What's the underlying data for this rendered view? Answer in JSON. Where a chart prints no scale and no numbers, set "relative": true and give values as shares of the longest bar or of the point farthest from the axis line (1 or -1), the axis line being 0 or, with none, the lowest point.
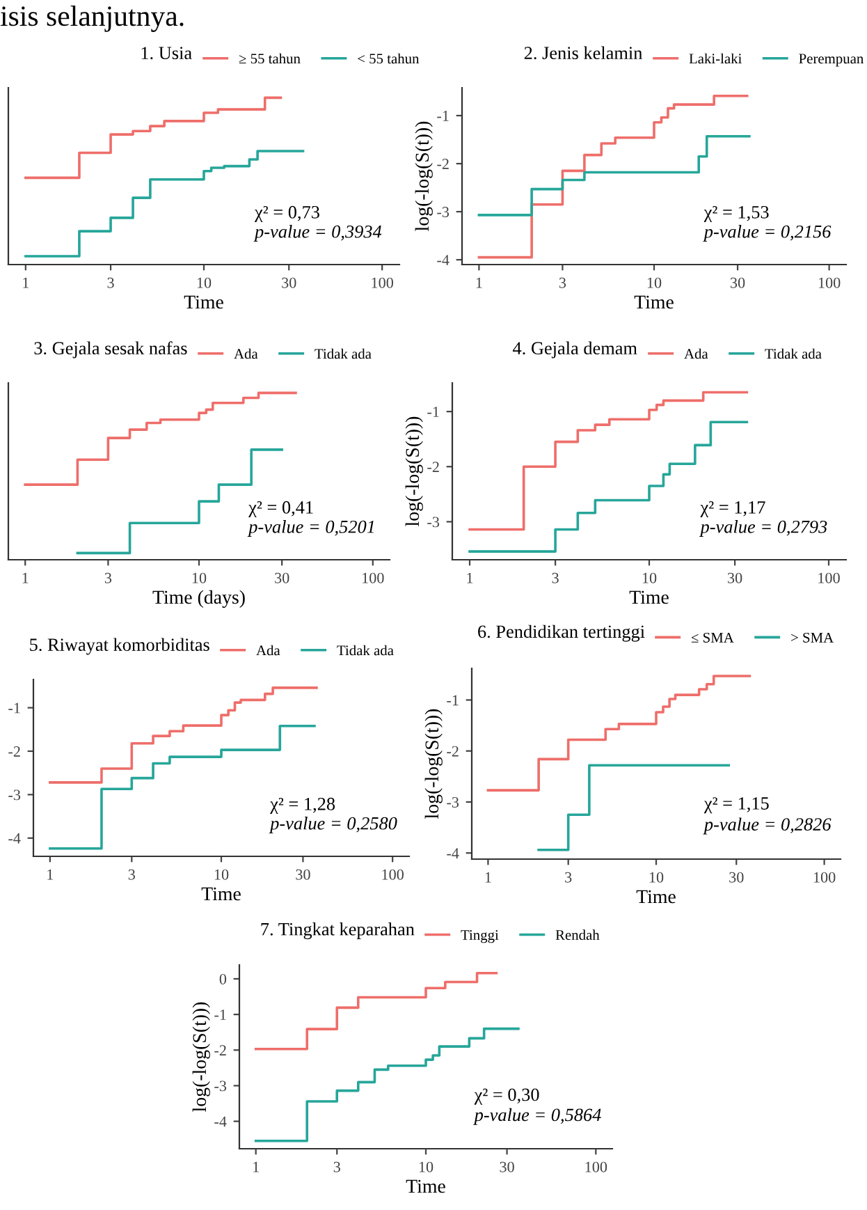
{
  "chart_data": [
    {
      "type": "step",
      "legend_title": "1. Usia",
      "legend": "top",
      "xlabel": "Time",
      "relative": true,
      "tick_labels": "x",
      "log": "x",
      "xlim": [
        0.8,
        125
      ],
      "xticks": [
        1,
        3,
        10,
        30,
        100
      ],
      "annotations": [
        "isis selanjutnya.",
        "χ² = 0,73",
        "p-value = 0,3934"
      ],
      "series": [
        {
          "name": "≥ 55 tahun",
          "color": "#ee6e6a",
          "x": [
            1,
            2,
            3,
            4,
            5,
            6,
            10,
            12,
            22,
            27
          ],
          "values": [
            0.52,
            0.67,
            0.78,
            0.8,
            0.83,
            0.86,
            0.91,
            0.93,
            1,
            1
          ]
        },
        {
          "name": "< 55 tahun",
          "color": "#26a69a",
          "x": [
            1,
            2,
            3,
            4,
            5,
            10,
            11,
            13,
            18,
            20,
            36
          ],
          "values": [
            0.05,
            0.2,
            0.28,
            0.4,
            0.51,
            0.56,
            0.58,
            0.59,
            0.63,
            0.68,
            0.68
          ]
        }
      ]
    },
    {
      "type": "step",
      "legend_title": "2. Jenis kelamin",
      "legend": "top",
      "xlabel": "Time",
      "ylabel": "log(-log(S(t)))",
      "log": "x",
      "xlim": [
        0.8,
        125
      ],
      "xticks": [
        1,
        3,
        10,
        30,
        100
      ],
      "ylim": [
        -4.1,
        -0.42
      ],
      "yticks": [
        -4,
        -3,
        -2,
        -1
      ],
      "annotations": [
        "χ² = 1,53",
        "p-value = 0,2156"
      ],
      "series": [
        {
          "name": "Laki-laki",
          "color": "#ee6e6a",
          "x": [
            1,
            2,
            3,
            4,
            5,
            6,
            10,
            11,
            12,
            13,
            22,
            34
          ],
          "values": [
            -3.95,
            -2.85,
            -2.15,
            -1.82,
            -1.58,
            -1.46,
            -1.14,
            -1.04,
            -0.85,
            -0.77,
            -0.59,
            -0.59
          ]
        },
        {
          "name": "Perempuan",
          "color": "#26a69a",
          "x": [
            1,
            2,
            3,
            4,
            18,
            20,
            35
          ],
          "values": [
            -3.07,
            -2.53,
            -2.34,
            -2.18,
            -1.85,
            -1.43,
            -1.43
          ]
        }
      ]
    },
    {
      "type": "step",
      "legend_title": "3. Gejala sesak nafas",
      "legend": "top",
      "xlabel": "Time (days)",
      "relative": true,
      "tick_labels": "x",
      "log": "x",
      "xlim": [
        0.8,
        125
      ],
      "xticks": [
        1,
        3,
        10,
        30,
        100
      ],
      "annotations": [
        "χ² = 0,41",
        "p-value = 0,5201"
      ],
      "series": [
        {
          "name": "Ada",
          "color": "#ee6e6a",
          "x": [
            1,
            2,
            3,
            4,
            5,
            6,
            10,
            11,
            12,
            18,
            22,
            36
          ],
          "values": [
            0.45,
            0.6,
            0.73,
            0.78,
            0.82,
            0.84,
            0.88,
            0.9,
            0.94,
            0.97,
            1,
            1
          ]
        },
        {
          "name": "Tidak ada",
          "color": "#26a69a",
          "x": [
            2,
            4,
            10,
            13,
            20,
            30
          ],
          "values": [
            0.04,
            0.22,
            0.35,
            0.45,
            0.66,
            0.66
          ]
        }
      ]
    },
    {
      "type": "step",
      "legend_title": "4. Gejala demam",
      "legend": "top",
      "xlabel": "Time",
      "ylabel": "log(-log(S(t)))",
      "log": "x",
      "xlim": [
        0.8,
        125
      ],
      "xticks": [
        1,
        3,
        10,
        30,
        100
      ],
      "ylim": [
        -3.69,
        -0.48
      ],
      "yticks": [
        -3,
        -2,
        -1
      ],
      "annotations": [
        "χ² = 1,17",
        "p-value = 0,2793"
      ],
      "series": [
        {
          "name": "Ada",
          "color": "#ee6e6a",
          "x": [
            1,
            2,
            3,
            4,
            5,
            6,
            10,
            11,
            12,
            20,
            35
          ],
          "values": [
            -3.14,
            -2.0,
            -1.55,
            -1.34,
            -1.24,
            -1.14,
            -0.97,
            -0.88,
            -0.8,
            -0.65,
            -0.65
          ]
        },
        {
          "name": "Tidak ada",
          "color": "#26a69a",
          "x": [
            1,
            3,
            4,
            5,
            10,
            12,
            13,
            18,
            22,
            35
          ],
          "values": [
            -3.54,
            -3.14,
            -2.84,
            -2.61,
            -2.35,
            -2.14,
            -1.95,
            -1.61,
            -1.19,
            -1.19
          ]
        }
      ]
    },
    {
      "type": "step",
      "legend_title": "5. Riwayat komorbiditas",
      "legend": "top",
      "xlabel": "Time",
      "log": "x",
      "xlim": [
        0.8,
        125
      ],
      "xticks": [
        1,
        3,
        10,
        30,
        100
      ],
      "ylim": [
        -4.42,
        -0.35
      ],
      "yticks": [
        -4,
        -3,
        -2,
        -1
      ],
      "annotations": [
        "χ² = 1,28",
        "p-value = 0,2580"
      ],
      "series": [
        {
          "name": "Ada",
          "color": "#ee6e6a",
          "x": [
            1,
            2,
            3,
            4,
            5,
            6,
            10,
            11,
            12,
            13,
            18,
            20,
            36
          ],
          "values": [
            -2.72,
            -2.4,
            -1.82,
            -1.65,
            -1.54,
            -1.41,
            -1.17,
            -1.06,
            -0.88,
            -0.82,
            -0.68,
            -0.54,
            -0.54
          ]
        },
        {
          "name": "Tidak ada",
          "color": "#26a69a",
          "x": [
            1,
            2,
            3,
            4,
            5,
            10,
            22,
            35
          ],
          "values": [
            -4.24,
            -2.87,
            -2.62,
            -2.28,
            -2.13,
            -1.97,
            -1.42,
            -1.42
          ]
        }
      ]
    },
    {
      "type": "step",
      "legend_title": "6. Pendidikan tertinggi",
      "legend": "top",
      "xlabel": "Time",
      "ylabel": "log(-log(S(t)))",
      "log": "x",
      "xlim": [
        0.8,
        125
      ],
      "xticks": [
        1,
        3,
        10,
        30,
        100
      ],
      "ylim": [
        -4.12,
        -0.38
      ],
      "yticks": [
        -4,
        -3,
        -2,
        -1
      ],
      "annotations": [
        "χ² = 1,15",
        "p-value = 0,2826"
      ],
      "series": [
        {
          "name": "≤ SMA",
          "color": "#ee6e6a",
          "x": [
            1,
            2,
            3,
            5,
            6,
            10,
            11,
            12,
            13,
            18,
            20,
            22,
            36
          ],
          "values": [
            -2.77,
            -2.16,
            -1.78,
            -1.57,
            -1.47,
            -1.24,
            -1.13,
            -0.98,
            -0.9,
            -0.79,
            -0.69,
            -0.53,
            -0.53
          ]
        },
        {
          "name": "> SMA",
          "color": "#26a69a",
          "x": [
            2,
            3,
            4,
            27
          ],
          "values": [
            -3.94,
            -3.25,
            -2.28,
            -2.28
          ]
        }
      ]
    },
    {
      "type": "step",
      "legend_title": "7. Tingkat keparahan",
      "legend": "top",
      "xlabel": "Time",
      "ylabel": "log(-log(S(t)))",
      "log": "x",
      "xlim": [
        0.8,
        125
      ],
      "xticks": [
        1,
        3,
        10,
        30,
        100
      ],
      "ylim": [
        -4.77,
        0.39
      ],
      "yticks": [
        -4,
        -3,
        -2,
        -1,
        0
      ],
      "annotations": [
        "χ² = 0,30",
        "p-value = 0,5864"
      ],
      "series": [
        {
          "name": "Tinggi",
          "color": "#ee6e6a",
          "x": [
            1,
            2,
            3,
            4,
            10,
            13,
            20,
            26
          ],
          "values": [
            -1.97,
            -1.41,
            -0.81,
            -0.52,
            -0.26,
            -0.09,
            0.16,
            0.16
          ]
        },
        {
          "name": "Rendah",
          "color": "#26a69a",
          "x": [
            1,
            2,
            3,
            4,
            5,
            6,
            10,
            11,
            12,
            18,
            22,
            35
          ],
          "values": [
            -4.55,
            -3.44,
            -3.14,
            -2.9,
            -2.55,
            -2.44,
            -2.27,
            -2.15,
            -1.9,
            -1.67,
            -1.4,
            -1.4
          ]
        }
      ]
    }
  ]
}
